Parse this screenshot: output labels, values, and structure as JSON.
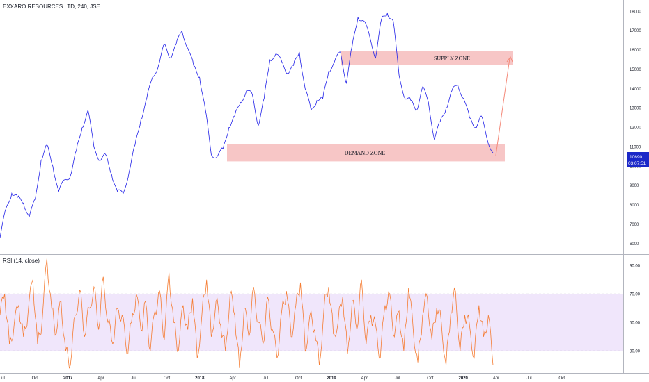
{
  "chart_data": {
    "type": "line",
    "title": "EXXARO RESOURCES LTD, 240, JSE",
    "xlabel": "",
    "ylabel": "",
    "x_ticks": [
      "Jul",
      "Oct",
      "2017",
      "Apr",
      "Jul",
      "Oct",
      "2018",
      "Apr",
      "Jul",
      "Oct",
      "2019",
      "Apr",
      "Jul",
      "Oct",
      "2020",
      "Apr",
      "Jul",
      "Oct"
    ],
    "ylim": [
      5600,
      18300
    ],
    "y_ticks": [
      "18000",
      "17000",
      "16000",
      "15000",
      "14000",
      "13000",
      "12000",
      "11000",
      "10000",
      "9000",
      "8000",
      "7000",
      "6000"
    ],
    "last_price": "10690",
    "countdown": "03:07:51",
    "series": [
      {
        "values": [
          6300,
          7800,
          8600,
          8400,
          8100,
          7400,
          8300,
          10300,
          11100,
          10000,
          8700,
          9300,
          9500,
          10800,
          12000,
          12900,
          11000,
          10300,
          10600,
          9600,
          8700,
          8600,
          9700,
          11100,
          12400,
          13500,
          14600,
          15200,
          16300,
          15600,
          16300,
          17000,
          16100,
          15200,
          14600,
          12900,
          10600,
          10500,
          10900,
          12000,
          12600,
          13300,
          13900,
          13700,
          12100,
          13500,
          15500,
          15800,
          15400,
          14800,
          15200,
          15900,
          14000,
          12900,
          13400,
          13500,
          14900,
          15400,
          15900,
          14300,
          16200,
          17700,
          17500,
          16700,
          15600,
          17600,
          17900,
          17500,
          14700,
          13500,
          13400,
          12900,
          14100,
          13300,
          11400,
          12300,
          13000,
          13900,
          14200,
          13500,
          12500,
          12000,
          12600,
          11400,
          10700
        ]
      }
    ],
    "zones": [
      {
        "label": "SUPPLY ZONE",
        "from": 15250,
        "to": 15950
      },
      {
        "label": "DEMAND ZONE",
        "from": 10250,
        "to": 11150
      }
    ],
    "rsi": {
      "title": "RSI (14, close)",
      "ylim": [
        15,
        97
      ],
      "y_ticks": [
        "90.00",
        "70.00",
        "50.00",
        "30.00"
      ],
      "band": [
        30,
        70
      ],
      "values": [
        55,
        70,
        35,
        48,
        62,
        40,
        58,
        80,
        35,
        52,
        95,
        60,
        42,
        65,
        30,
        20,
        55,
        73,
        40,
        60,
        75,
        45,
        82,
        50,
        35,
        60,
        55,
        28,
        50,
        70,
        45,
        65,
        30,
        58,
        72,
        38,
        85,
        50,
        30,
        62,
        45,
        67,
        25,
        55,
        80,
        40,
        65,
        48,
        30,
        70,
        55,
        18,
        60,
        40,
        75,
        50,
        35,
        68,
        45,
        25,
        58,
        72,
        40,
        62,
        78,
        30,
        55,
        45,
        20,
        60,
        75,
        42,
        50,
        68,
        28,
        65,
        45,
        80,
        35,
        55,
        48,
        25,
        62,
        70,
        40,
        58,
        30,
        74,
        45,
        22,
        55,
        68,
        38,
        60,
        50,
        20,
        56,
        72,
        30,
        55,
        48,
        25,
        62,
        40,
        55,
        20
      ]
    },
    "colors": {
      "price": "#2121e8",
      "rsi": "#f57c32",
      "supply_zone": "#f7c6c6",
      "demand_zone": "#f7c6c6",
      "rsi_band": "#f0e6fb",
      "price_label_bg": "#1b28c8"
    }
  }
}
